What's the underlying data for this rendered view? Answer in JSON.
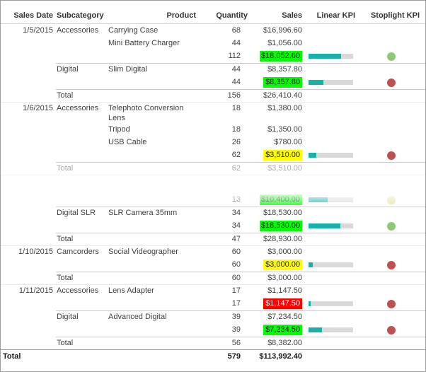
{
  "columns": [
    "Sales Date",
    "Subcategory",
    "Product",
    "Quantity",
    "Sales",
    "Linear KPI",
    "Stoplight KPI"
  ],
  "colors": {
    "highlight_green": "#00ff00",
    "highlight_yellow": "#ffff00",
    "highlight_red": "#ff0000",
    "bar_fill": "#17b1a8",
    "bar_track": "#d9d9d9",
    "light_green": "#8cc972",
    "light_red": "#c0504d",
    "light_yellow": "#e6e392"
  },
  "rows": [
    {
      "type": "detail",
      "date": "1/5/2015",
      "subcategory": "Accessories",
      "product": "Carrying Case",
      "quantity": "68",
      "sales": "$16,996.60",
      "sep": "none"
    },
    {
      "type": "detail",
      "date": "",
      "subcategory": "",
      "product": "Mini Battery Charger",
      "quantity": "44",
      "sales": "$1,056.00",
      "sep": "none"
    },
    {
      "type": "subtotal",
      "quantity": "112",
      "sales": "$18,052.60",
      "highlight": "green",
      "bar_pct": 73,
      "light": "green",
      "sep": "none"
    },
    {
      "type": "detail",
      "date": "",
      "subcategory": "Digital",
      "product": "Slim Digital",
      "quantity": "44",
      "sales": "$8,357.80",
      "sep": "sub"
    },
    {
      "type": "subtotal",
      "quantity": "44",
      "sales": "$8,357.80",
      "highlight": "green",
      "bar_pct": 33,
      "light": "red",
      "sep": "none"
    },
    {
      "type": "total",
      "label": "Total",
      "quantity": "156",
      "sales": "$26,410.40",
      "sep": "sub"
    },
    {
      "type": "detail",
      "date": "1/6/2015",
      "subcategory": "Accessories",
      "product": "Telephoto Conversion Lens",
      "quantity": "18",
      "sales": "$1,380.00",
      "sep": "section",
      "tall": true
    },
    {
      "type": "detail",
      "date": "",
      "subcategory": "",
      "product": "Tripod",
      "quantity": "18",
      "sales": "$1,350.00",
      "sep": "none"
    },
    {
      "type": "detail",
      "date": "",
      "subcategory": "",
      "product": "USB Cable",
      "quantity": "26",
      "sales": "$780.00",
      "sep": "none"
    },
    {
      "type": "subtotal",
      "quantity": "62",
      "sales": "$3,510.00",
      "highlight": "yellow",
      "bar_pct": 17,
      "light": "red",
      "sep": "none"
    },
    {
      "type": "total",
      "label": "Total",
      "quantity": "62",
      "sales": "$3,510.00",
      "sep": "sub",
      "muted": true
    },
    {
      "type": "spacer",
      "sep": "section"
    },
    {
      "type": "subtotal",
      "quantity": "13",
      "sales": "$10,400.00",
      "highlight": "green",
      "bar_pct": 43,
      "light": "yellow",
      "sep": "none"
    },
    {
      "type": "detail",
      "date": "",
      "subcategory": "Digital SLR",
      "product": "SLR Camera 35mm",
      "quantity": "34",
      "sales": "$18,530.00",
      "sep": "sub"
    },
    {
      "type": "subtotal",
      "quantity": "34",
      "sales": "$18,530.00",
      "highlight": "green",
      "bar_pct": 72,
      "light": "green",
      "sep": "none"
    },
    {
      "type": "total",
      "label": "Total",
      "quantity": "47",
      "sales": "$28,930.00",
      "sep": "sub"
    },
    {
      "type": "detail",
      "date": "1/10/2015",
      "subcategory": "Camcorders",
      "product": "Social Videographer",
      "quantity": "60",
      "sales": "$3,000.00",
      "sep": "section"
    },
    {
      "type": "subtotal",
      "quantity": "60",
      "sales": "$3,000.00",
      "highlight": "yellow",
      "bar_pct": 9,
      "light": "red",
      "sep": "none"
    },
    {
      "type": "total",
      "label": "Total",
      "quantity": "60",
      "sales": "$3,000.00",
      "sep": "sub"
    },
    {
      "type": "detail",
      "date": "1/11/2015",
      "subcategory": "Accessories",
      "product": "Lens Adapter",
      "quantity": "17",
      "sales": "$1,147.50",
      "sep": "section"
    },
    {
      "type": "subtotal",
      "quantity": "17",
      "sales": "$1,147.50",
      "highlight": "red",
      "bar_pct": 4,
      "light": "red",
      "sep": "none"
    },
    {
      "type": "detail",
      "date": "",
      "subcategory": "Digital",
      "product": "Advanced Digital",
      "quantity": "39",
      "sales": "$7,234.50",
      "sep": "sub"
    },
    {
      "type": "subtotal",
      "quantity": "39",
      "sales": "$7,234.50",
      "highlight": "green",
      "bar_pct": 30,
      "light": "red",
      "sep": "none"
    },
    {
      "type": "total",
      "label": "Total",
      "quantity": "56",
      "sales": "$8,382.00",
      "sep": "sub"
    },
    {
      "type": "grand",
      "label": "Total",
      "quantity": "579",
      "sales": "$113,992.40",
      "sep": "grand"
    }
  ]
}
